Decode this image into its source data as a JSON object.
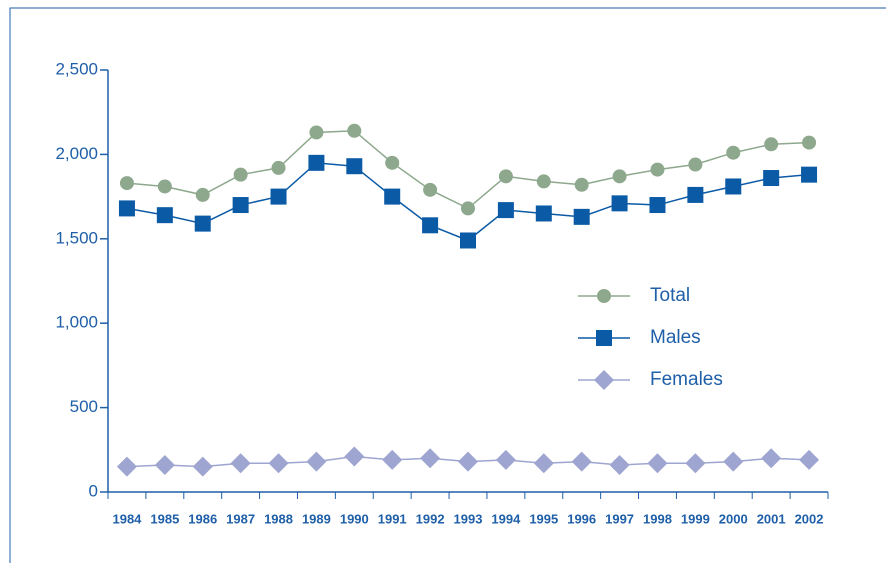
{
  "chart_data": {
    "type": "line",
    "categories": [
      "1984",
      "1985",
      "1986",
      "1987",
      "1988",
      "1989",
      "1990",
      "1991",
      "1992",
      "1993",
      "1994",
      "1995",
      "1996",
      "1997",
      "1998",
      "1999",
      "2000",
      "2001",
      "2002"
    ],
    "series": [
      {
        "name": "Total",
        "color": "#8da88d",
        "marker": "circle",
        "values": [
          1830,
          1810,
          1760,
          1880,
          1920,
          2130,
          2140,
          1950,
          1790,
          1680,
          1870,
          1840,
          1820,
          1870,
          1910,
          1940,
          2010,
          2060,
          2070
        ]
      },
      {
        "name": "Males",
        "color": "#0b5aa6",
        "marker": "square",
        "values": [
          1680,
          1640,
          1590,
          1700,
          1750,
          1950,
          1930,
          1750,
          1580,
          1490,
          1670,
          1650,
          1630,
          1710,
          1700,
          1760,
          1810,
          1860,
          1880
        ]
      },
      {
        "name": "Females",
        "color": "#9ea5d0",
        "marker": "diamond",
        "values": [
          150,
          160,
          150,
          170,
          170,
          180,
          210,
          190,
          200,
          180,
          190,
          170,
          180,
          160,
          170,
          170,
          180,
          200,
          190
        ]
      }
    ],
    "ylim": [
      0,
      2500
    ],
    "yticks": [
      0,
      500,
      {
        "value": 1000,
        "label": "1,000"
      },
      {
        "value": 1500,
        "label": "1,500"
      },
      {
        "value": 2000,
        "label": "2,000"
      },
      {
        "value": 2500,
        "label": "2,500"
      }
    ]
  }
}
